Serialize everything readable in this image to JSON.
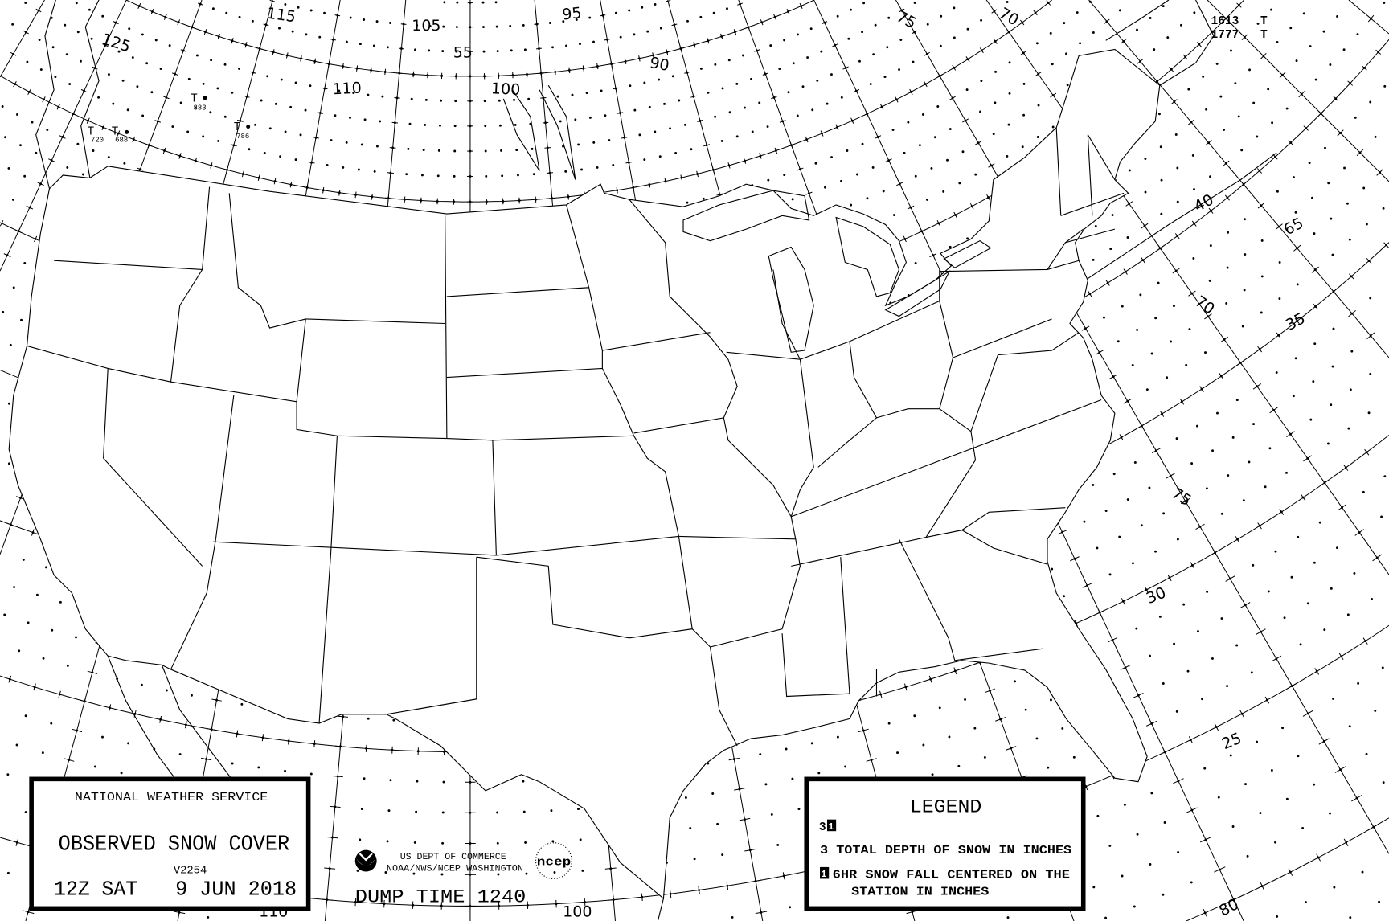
{
  "map": {
    "grid_labels": [
      "125",
      "115",
      "105",
      "95",
      "55",
      "110",
      "100",
      "90",
      "75",
      "70",
      "40",
      "65",
      "70",
      "35",
      "75",
      "30",
      "25",
      "80",
      "110",
      "100"
    ],
    "stations": [
      {
        "symbol": "T",
        "value": "883",
        "dot": true
      },
      {
        "symbol": "T",
        "value": "786",
        "dot": true
      },
      {
        "symbol": "T",
        "value": "720",
        "dot": false
      },
      {
        "symbol": "T",
        "value": "688",
        "dot": true
      }
    ],
    "corner_reports": [
      {
        "value": "1613",
        "symbol": "T"
      },
      {
        "value": "1777",
        "symbol": "T"
      }
    ],
    "colors": {
      "ink": "#000000",
      "background": "#ffffff"
    }
  },
  "title_box": {
    "agency": "NATIONAL WEATHER SERVICE",
    "product": "OBSERVED SNOW COVER",
    "version": "V2254",
    "time": "12Z SAT",
    "date": "9 JUN 2018"
  },
  "credits": {
    "logo": "noaa-logo",
    "line1": "US DEPT OF COMMERCE",
    "line2": "NOAA/NWS/NCEP WASHINGTON",
    "ncep_logo": "ncep",
    "dump_time": "DUMP TIME 1240"
  },
  "legend": {
    "title": "LEGEND",
    "sample_depth": "3",
    "sample_fall": "1",
    "depth_item": "3 TOTAL DEPTH OF SNOW IN INCHES",
    "fall_marker": "1",
    "fall_item_line1": "6HR SNOW FALL CENTERED ON THE",
    "fall_item_line2": "STATION IN INCHES"
  }
}
